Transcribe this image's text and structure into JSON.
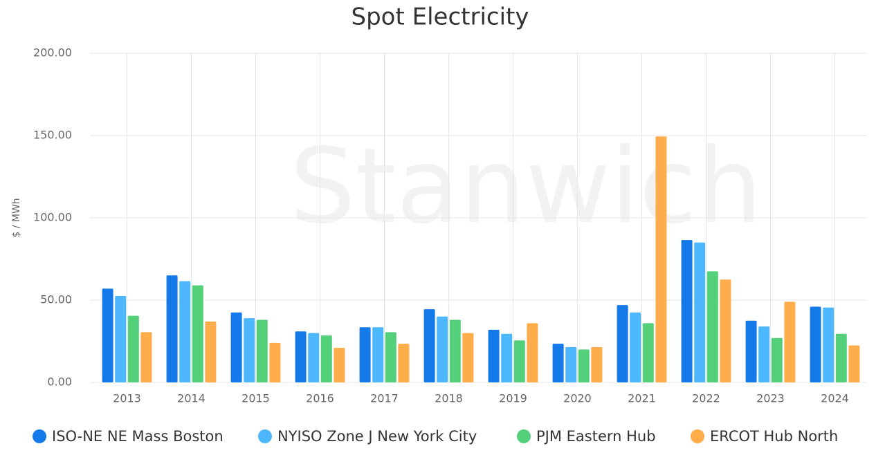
{
  "chart_data": {
    "type": "bar",
    "title": "Spot Electricity",
    "watermark": "Stanwich",
    "y_label": "$ / MWh",
    "categories": [
      "2013",
      "2014",
      "2015",
      "2016",
      "2017",
      "2018",
      "2019",
      "2020",
      "2021",
      "2022",
      "2023",
      "2024"
    ],
    "series": [
      {
        "name": "ISO-NE NE Mass Boston",
        "color": "#1479e9",
        "values": [
          57,
          65,
          42.5,
          31,
          33.5,
          44.5,
          32,
          23.5,
          47,
          86.5,
          37.5,
          46
        ]
      },
      {
        "name": "NYISO Zone J New York City",
        "color": "#4cb7fd",
        "values": [
          52.5,
          61.5,
          39,
          30,
          33.5,
          40,
          29.5,
          21.5,
          42.5,
          85,
          34,
          45.5
        ]
      },
      {
        "name": "PJM Eastern Hub",
        "color": "#54d07b",
        "values": [
          40.5,
          59,
          38,
          28.5,
          30.5,
          38,
          25.5,
          20,
          36,
          67.5,
          27,
          29.5
        ]
      },
      {
        "name": "ERCOT Hub North",
        "color": "#ffad4a",
        "values": [
          30.5,
          37,
          24,
          21,
          23.5,
          30,
          36,
          21.5,
          149.5,
          62.5,
          49,
          22.5
        ]
      }
    ],
    "ylim": [
      0,
      200
    ],
    "yticks": [
      {
        "value": 0,
        "label": "0.00"
      },
      {
        "value": 50,
        "label": "50.00"
      },
      {
        "value": 100,
        "label": "100.00"
      },
      {
        "value": 150,
        "label": "150.00"
      },
      {
        "value": 200,
        "label": "200.00"
      }
    ],
    "grid": true,
    "legend": "bottom"
  }
}
